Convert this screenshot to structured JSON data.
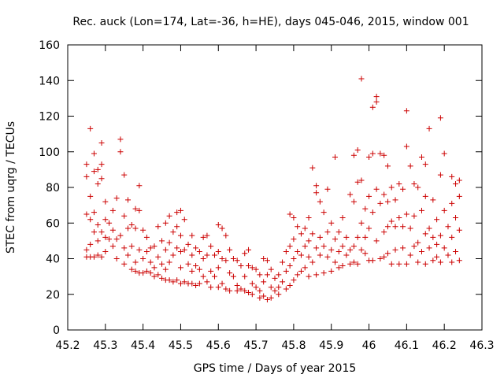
{
  "chart_data": {
    "type": "scatter",
    "title": "Rec. auck (Lon=174, Lat=-36, h=HE), days 045-046, 2015, window 001",
    "xlabel": "GPS time / Days of year 2015",
    "ylabel": "STEC from uqrg / TECUs",
    "xlim": [
      45.2,
      46.3
    ],
    "ylim": [
      0,
      160
    ],
    "xticks": [
      "45.2",
      "45.3",
      "45.4",
      "45.5",
      "45.6",
      "45.7",
      "45.8",
      "45.9",
      "46",
      "46.1",
      "46.2",
      "46.3"
    ],
    "yticks": [
      "0",
      "20",
      "40",
      "60",
      "80",
      "100",
      "120",
      "140",
      "160"
    ],
    "grid": false,
    "marker": "+",
    "color": "#cc0000",
    "points": [
      [
        45.25,
        93
      ],
      [
        45.25,
        86
      ],
      [
        45.25,
        65
      ],
      [
        45.25,
        45
      ],
      [
        45.25,
        41
      ],
      [
        45.26,
        113
      ],
      [
        45.26,
        75
      ],
      [
        45.26,
        62
      ],
      [
        45.26,
        48
      ],
      [
        45.26,
        41
      ],
      [
        45.27,
        99
      ],
      [
        45.27,
        89
      ],
      [
        45.27,
        66
      ],
      [
        45.27,
        55
      ],
      [
        45.27,
        41
      ],
      [
        45.28,
        90
      ],
      [
        45.28,
        82
      ],
      [
        45.28,
        59
      ],
      [
        45.28,
        50
      ],
      [
        45.28,
        42
      ],
      [
        45.29,
        105
      ],
      [
        45.29,
        93
      ],
      [
        45.29,
        85
      ],
      [
        45.29,
        55
      ],
      [
        45.29,
        41
      ],
      [
        45.3,
        72
      ],
      [
        45.3,
        62
      ],
      [
        45.3,
        52
      ],
      [
        45.3,
        44
      ],
      [
        45.31,
        60
      ],
      [
        45.31,
        51
      ],
      [
        45.32,
        67
      ],
      [
        45.32,
        56
      ],
      [
        45.32,
        47
      ],
      [
        45.33,
        74
      ],
      [
        45.33,
        51
      ],
      [
        45.33,
        40
      ],
      [
        45.34,
        107
      ],
      [
        45.34,
        100
      ],
      [
        45.34,
        53
      ],
      [
        45.35,
        87
      ],
      [
        45.35,
        64
      ],
      [
        45.35,
        46
      ],
      [
        45.35,
        37
      ],
      [
        45.36,
        73
      ],
      [
        45.36,
        57
      ],
      [
        45.36,
        42
      ],
      [
        45.37,
        59
      ],
      [
        45.37,
        47
      ],
      [
        45.37,
        34
      ],
      [
        45.38,
        68
      ],
      [
        45.38,
        57
      ],
      [
        45.38,
        38
      ],
      [
        45.38,
        33
      ],
      [
        45.39,
        81
      ],
      [
        45.39,
        67
      ],
      [
        45.39,
        45
      ],
      [
        45.39,
        32
      ],
      [
        45.4,
        56
      ],
      [
        45.4,
        40
      ],
      [
        45.4,
        32
      ],
      [
        45.41,
        52
      ],
      [
        45.41,
        44
      ],
      [
        45.41,
        33
      ],
      [
        45.42,
        46
      ],
      [
        45.42,
        38
      ],
      [
        45.42,
        32
      ],
      [
        45.43,
        47
      ],
      [
        45.43,
        35
      ],
      [
        45.43,
        30
      ],
      [
        45.44,
        58
      ],
      [
        45.44,
        41
      ],
      [
        45.44,
        31
      ],
      [
        45.45,
        50
      ],
      [
        45.45,
        37
      ],
      [
        45.45,
        29
      ],
      [
        45.46,
        60
      ],
      [
        45.46,
        45
      ],
      [
        45.46,
        34
      ],
      [
        45.46,
        28
      ],
      [
        45.47,
        64
      ],
      [
        45.47,
        49
      ],
      [
        45.47,
        38
      ],
      [
        45.47,
        28
      ],
      [
        45.48,
        55
      ],
      [
        45.48,
        42
      ],
      [
        45.48,
        27
      ],
      [
        45.49,
        66
      ],
      [
        45.49,
        58
      ],
      [
        45.49,
        46
      ],
      [
        45.49,
        28
      ],
      [
        45.5,
        67
      ],
      [
        45.5,
        53
      ],
      [
        45.5,
        44
      ],
      [
        45.5,
        35
      ],
      [
        45.5,
        26
      ],
      [
        45.51,
        62
      ],
      [
        45.51,
        45
      ],
      [
        45.51,
        27
      ],
      [
        45.52,
        48
      ],
      [
        45.52,
        37
      ],
      [
        45.52,
        26
      ],
      [
        45.53,
        53
      ],
      [
        45.53,
        42
      ],
      [
        45.53,
        33
      ],
      [
        45.53,
        26
      ],
      [
        45.54,
        46
      ],
      [
        45.54,
        36
      ],
      [
        45.54,
        25
      ],
      [
        45.55,
        44
      ],
      [
        45.55,
        34
      ],
      [
        45.55,
        26
      ],
      [
        45.56,
        52
      ],
      [
        45.56,
        40
      ],
      [
        45.56,
        30
      ],
      [
        45.57,
        53
      ],
      [
        45.57,
        42
      ],
      [
        45.57,
        27
      ],
      [
        45.58,
        47
      ],
      [
        45.58,
        33
      ],
      [
        45.58,
        24
      ],
      [
        45.59,
        42
      ],
      [
        45.59,
        30
      ],
      [
        45.6,
        59
      ],
      [
        45.6,
        44
      ],
      [
        45.6,
        35
      ],
      [
        45.6,
        24
      ],
      [
        45.61,
        57
      ],
      [
        45.61,
        40
      ],
      [
        45.61,
        26
      ],
      [
        45.62,
        53
      ],
      [
        45.62,
        39
      ],
      [
        45.62,
        23
      ],
      [
        45.63,
        45
      ],
      [
        45.63,
        32
      ],
      [
        45.63,
        22
      ],
      [
        45.64,
        40
      ],
      [
        45.64,
        30
      ],
      [
        45.65,
        39
      ],
      [
        45.65,
        25
      ],
      [
        45.65,
        22
      ],
      [
        45.66,
        36
      ],
      [
        45.66,
        23
      ],
      [
        45.67,
        43
      ],
      [
        45.67,
        30
      ],
      [
        45.67,
        22
      ],
      [
        45.68,
        45
      ],
      [
        45.68,
        36
      ],
      [
        45.68,
        21
      ],
      [
        45.69,
        35
      ],
      [
        45.69,
        26
      ],
      [
        45.69,
        20
      ],
      [
        45.7,
        34
      ],
      [
        45.7,
        24
      ],
      [
        45.71,
        31
      ],
      [
        45.71,
        22
      ],
      [
        45.71,
        18
      ],
      [
        45.72,
        40
      ],
      [
        45.72,
        27
      ],
      [
        45.72,
        19
      ],
      [
        45.73,
        39
      ],
      [
        45.73,
        31
      ],
      [
        45.73,
        17
      ],
      [
        45.74,
        34
      ],
      [
        45.74,
        24
      ],
      [
        45.74,
        18
      ],
      [
        45.75,
        29
      ],
      [
        45.75,
        22
      ],
      [
        45.76,
        31
      ],
      [
        45.76,
        24
      ],
      [
        45.76,
        20
      ],
      [
        45.77,
        38
      ],
      [
        45.77,
        27
      ],
      [
        45.78,
        44
      ],
      [
        45.78,
        33
      ],
      [
        45.78,
        23
      ],
      [
        45.79,
        65
      ],
      [
        45.79,
        47
      ],
      [
        45.79,
        36
      ],
      [
        45.79,
        25
      ],
      [
        45.8,
        63
      ],
      [
        45.8,
        51
      ],
      [
        45.8,
        40
      ],
      [
        45.8,
        28
      ],
      [
        45.81,
        58
      ],
      [
        45.81,
        44
      ],
      [
        45.81,
        31
      ],
      [
        45.82,
        54
      ],
      [
        45.82,
        42
      ],
      [
        45.82,
        33
      ],
      [
        45.83,
        57
      ],
      [
        45.83,
        47
      ],
      [
        45.83,
        35
      ],
      [
        45.84,
        63
      ],
      [
        45.84,
        50
      ],
      [
        45.84,
        41
      ],
      [
        45.84,
        30
      ],
      [
        45.85,
        91
      ],
      [
        45.85,
        54
      ],
      [
        45.85,
        38
      ],
      [
        45.86,
        81
      ],
      [
        45.86,
        77
      ],
      [
        45.86,
        46
      ],
      [
        45.86,
        31
      ],
      [
        45.87,
        72
      ],
      [
        45.87,
        52
      ],
      [
        45.87,
        42
      ],
      [
        45.88,
        66
      ],
      [
        45.88,
        47
      ],
      [
        45.88,
        32
      ],
      [
        45.89,
        79
      ],
      [
        45.89,
        55
      ],
      [
        45.89,
        41
      ],
      [
        45.9,
        60
      ],
      [
        45.9,
        45
      ],
      [
        45.9,
        33
      ],
      [
        45.91,
        97
      ],
      [
        45.91,
        51
      ],
      [
        45.91,
        38
      ],
      [
        45.92,
        55
      ],
      [
        45.92,
        44
      ],
      [
        45.92,
        35
      ],
      [
        45.93,
        63
      ],
      [
        45.93,
        47
      ],
      [
        45.93,
        36
      ],
      [
        45.94,
        52
      ],
      [
        45.94,
        42
      ],
      [
        45.95,
        76
      ],
      [
        45.95,
        45
      ],
      [
        45.95,
        37
      ],
      [
        45.96,
        98
      ],
      [
        45.96,
        72
      ],
      [
        45.96,
        47
      ],
      [
        45.96,
        38
      ],
      [
        45.97,
        101
      ],
      [
        45.97,
        83
      ],
      [
        45.97,
        52
      ],
      [
        45.97,
        37
      ],
      [
        45.98,
        141
      ],
      [
        45.98,
        84
      ],
      [
        45.98,
        60
      ],
      [
        45.98,
        45
      ],
      [
        45.99,
        68
      ],
      [
        45.99,
        52
      ],
      [
        45.99,
        43
      ],
      [
        46,
        97
      ],
      [
        46,
        75
      ],
      [
        46,
        57
      ],
      [
        46,
        39
      ],
      [
        46.01,
        125
      ],
      [
        46.01,
        99
      ],
      [
        46.01,
        66
      ],
      [
        46.01,
        39
      ],
      [
        46.02,
        131
      ],
      [
        46.02,
        128
      ],
      [
        46.02,
        79
      ],
      [
        46.02,
        50
      ],
      [
        46.03,
        99
      ],
      [
        46.03,
        71
      ],
      [
        46.03,
        40
      ],
      [
        46.04,
        98
      ],
      [
        46.04,
        76
      ],
      [
        46.04,
        55
      ],
      [
        46.04,
        41
      ],
      [
        46.05,
        92
      ],
      [
        46.05,
        72
      ],
      [
        46.05,
        58
      ],
      [
        46.05,
        43
      ],
      [
        46.06,
        80
      ],
      [
        46.06,
        61
      ],
      [
        46.06,
        37
      ],
      [
        46.07,
        73
      ],
      [
        46.07,
        58
      ],
      [
        46.07,
        45
      ],
      [
        46.08,
        82
      ],
      [
        46.08,
        63
      ],
      [
        46.08,
        37
      ],
      [
        46.09,
        79
      ],
      [
        46.09,
        58
      ],
      [
        46.09,
        46
      ],
      [
        46.1,
        123
      ],
      [
        46.1,
        103
      ],
      [
        46.1,
        65
      ],
      [
        46.1,
        37
      ],
      [
        46.11,
        92
      ],
      [
        46.11,
        57
      ],
      [
        46.11,
        42
      ],
      [
        46.12,
        82
      ],
      [
        46.12,
        64
      ],
      [
        46.12,
        47
      ],
      [
        46.13,
        80
      ],
      [
        46.13,
        49
      ],
      [
        46.13,
        38
      ],
      [
        46.14,
        97
      ],
      [
        46.14,
        67
      ],
      [
        46.14,
        44
      ],
      [
        46.15,
        93
      ],
      [
        46.15,
        75
      ],
      [
        46.15,
        54
      ],
      [
        46.15,
        37
      ],
      [
        46.16,
        113
      ],
      [
        46.16,
        57
      ],
      [
        46.16,
        46
      ],
      [
        46.17,
        73
      ],
      [
        46.17,
        52
      ],
      [
        46.17,
        39
      ],
      [
        46.18,
        62
      ],
      [
        46.18,
        48
      ],
      [
        46.18,
        41
      ],
      [
        46.19,
        119
      ],
      [
        46.19,
        87
      ],
      [
        46.19,
        53
      ],
      [
        46.19,
        38
      ],
      [
        46.2,
        99
      ],
      [
        46.2,
        67
      ],
      [
        46.2,
        46
      ],
      [
        46.21,
        58
      ],
      [
        46.21,
        42
      ],
      [
        46.22,
        86
      ],
      [
        46.22,
        71
      ],
      [
        46.22,
        52
      ],
      [
        46.22,
        38
      ],
      [
        46.23,
        82
      ],
      [
        46.23,
        63
      ],
      [
        46.23,
        44
      ],
      [
        46.24,
        84
      ],
      [
        46.24,
        75
      ],
      [
        46.24,
        56
      ],
      [
        46.24,
        39
      ]
    ]
  }
}
